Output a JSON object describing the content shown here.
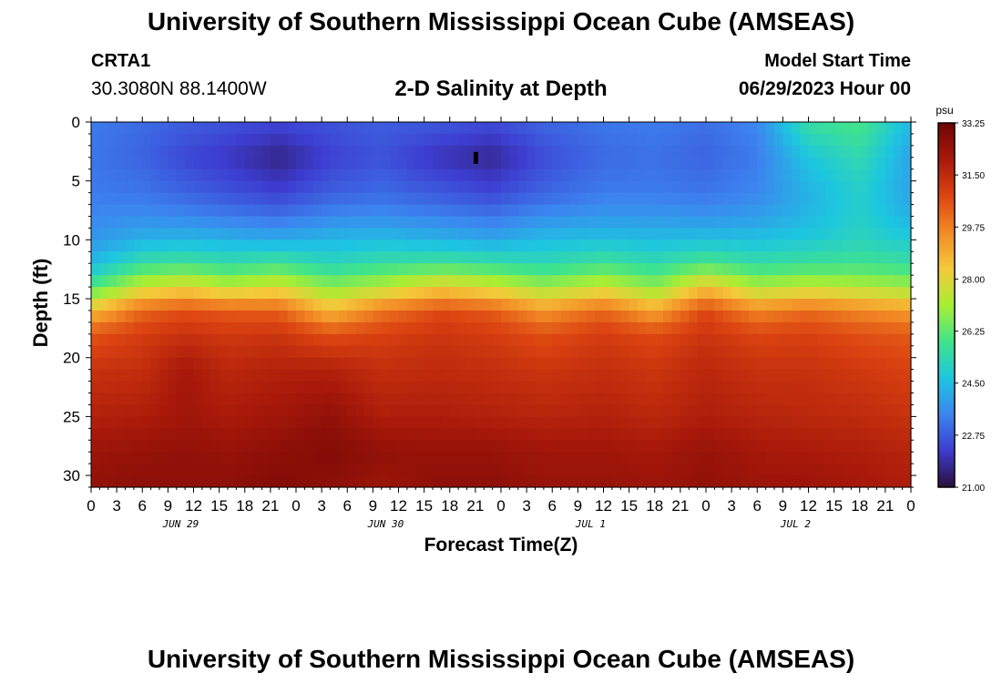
{
  "header": {
    "title": "University of Southern Mississippi Ocean Cube (AMSEAS)",
    "station_id": "CRTA1",
    "station_coords": "30.3080N  88.1400W",
    "chart_title": "2-D Salinity at Depth",
    "model_start_label": "Model Start Time",
    "model_start_value": "06/29/2023 Hour 00"
  },
  "footer": {
    "title": "University of Southern Mississippi Ocean Cube (AMSEAS)"
  },
  "chart_data": {
    "type": "heatmap",
    "title": "2-D Salinity at Depth",
    "xlabel": "Forecast Time(Z)",
    "ylabel": "Depth (ft)",
    "x_range_hours": [
      0,
      96
    ],
    "x_tick_step_hours": 3,
    "x_tick_labels": [
      "0",
      "3",
      "6",
      "9",
      "12",
      "15",
      "18",
      "21",
      "0",
      "3",
      "6",
      "9",
      "12",
      "15",
      "18",
      "21",
      "0",
      "3",
      "6",
      "9",
      "12",
      "15",
      "18",
      "21",
      "0",
      "3",
      "6",
      "9",
      "12",
      "15",
      "18",
      "21",
      "0"
    ],
    "date_labels": [
      {
        "label": "JUN 29",
        "hour": 10.5
      },
      {
        "label": "JUN 30",
        "hour": 34.5
      },
      {
        "label": "JUL 1",
        "hour": 58.5
      },
      {
        "label": "JUL 2",
        "hour": 82.5
      }
    ],
    "y_range_ft": [
      0,
      31
    ],
    "y_ticks": [
      0,
      5,
      10,
      15,
      20,
      25,
      30
    ],
    "colorbar": {
      "unit": "psu",
      "min": 21.0,
      "max": 33.25,
      "tick_labels": [
        "33.25",
        "31.50",
        "29.75",
        "28.00",
        "26.25",
        "24.50",
        "22.75",
        "21.00"
      ],
      "tick_values": [
        33.25,
        31.5,
        29.75,
        28.0,
        26.25,
        24.5,
        22.75,
        21.0
      ],
      "colors": [
        "#2a0f3a",
        "#3d3ccf",
        "#3c85f0",
        "#1dc6e0",
        "#40e48a",
        "#a8ee33",
        "#f5c83a",
        "#f28a25",
        "#dc4411",
        "#a8190a",
        "#6e0505"
      ]
    },
    "marker": {
      "hour": 45,
      "depth_ft": 3
    },
    "sample_hours": [
      0,
      6,
      11,
      16,
      22,
      28,
      34,
      41,
      47,
      53,
      60,
      66,
      72,
      78,
      84,
      90,
      96
    ],
    "sample_depths_ft": [
      0,
      3,
      6,
      8,
      10,
      12,
      14,
      16,
      18,
      21,
      25,
      28,
      31
    ],
    "salinity_psu": [
      [
        23.3,
        23.2,
        23.3,
        23.5,
        23.8,
        24.4,
        26.0,
        28.5,
        30.5,
        31.3,
        31.8,
        32.3,
        32.5
      ],
      [
        23.0,
        22.9,
        23.2,
        23.6,
        24.3,
        25.6,
        27.6,
        30.2,
        31.0,
        31.4,
        31.9,
        32.4,
        32.6
      ],
      [
        22.8,
        22.4,
        22.9,
        23.5,
        24.4,
        25.8,
        28.0,
        30.6,
        31.3,
        32.1,
        32.2,
        32.5,
        32.6
      ],
      [
        22.6,
        22.1,
        22.6,
        23.3,
        24.3,
        25.5,
        27.4,
        30.4,
        31.1,
        31.6,
        32.0,
        32.4,
        32.6
      ],
      [
        22.4,
        21.6,
        22.3,
        23.1,
        24.2,
        25.8,
        27.8,
        30.3,
        31.2,
        31.8,
        32.2,
        32.6,
        32.8
      ],
      [
        22.6,
        22.3,
        22.8,
        23.5,
        24.4,
        25.2,
        26.8,
        28.6,
        30.6,
        31.8,
        32.5,
        32.8,
        32.6
      ],
      [
        22.8,
        22.6,
        23.0,
        23.6,
        24.5,
        25.6,
        27.3,
        29.9,
        30.9,
        31.4,
        31.9,
        32.5,
        32.3
      ],
      [
        22.7,
        22.0,
        22.7,
        23.4,
        24.3,
        25.8,
        28.2,
        30.7,
        31.2,
        31.5,
        31.9,
        32.4,
        32.6
      ],
      [
        22.5,
        21.7,
        22.4,
        23.2,
        24.1,
        25.6,
        27.7,
        30.4,
        31.0,
        31.4,
        31.8,
        32.4,
        32.6
      ],
      [
        22.9,
        22.5,
        22.9,
        23.6,
        24.5,
        25.3,
        27.0,
        29.3,
        30.6,
        31.2,
        31.7,
        32.2,
        32.4
      ],
      [
        23.2,
        23.0,
        23.3,
        23.8,
        24.6,
        25.8,
        27.6,
        30.2,
        31.0,
        31.4,
        31.8,
        32.2,
        32.4
      ],
      [
        23.3,
        23.1,
        23.3,
        23.8,
        24.5,
        25.4,
        26.8,
        29.0,
        30.7,
        31.2,
        31.6,
        32.1,
        32.3
      ],
      [
        23.1,
        22.9,
        23.2,
        23.7,
        24.6,
        26.0,
        28.4,
        30.8,
        31.2,
        31.6,
        31.9,
        32.4,
        32.5
      ],
      [
        23.5,
        23.3,
        23.5,
        23.9,
        24.6,
        25.5,
        27.2,
        29.6,
        30.8,
        31.3,
        31.7,
        32.1,
        32.3
      ],
      [
        25.6,
        24.7,
        24.3,
        24.4,
        24.8,
        25.7,
        27.5,
        30.1,
        30.9,
        31.3,
        31.6,
        32.0,
        32.3
      ],
      [
        26.0,
        25.4,
        25.0,
        25.0,
        25.2,
        25.8,
        27.3,
        29.6,
        30.6,
        31.1,
        31.5,
        31.9,
        32.1
      ],
      [
        24.4,
        24.0,
        24.0,
        24.3,
        24.8,
        25.6,
        27.0,
        29.2,
        30.4,
        30.9,
        31.3,
        31.7,
        31.9
      ]
    ]
  }
}
